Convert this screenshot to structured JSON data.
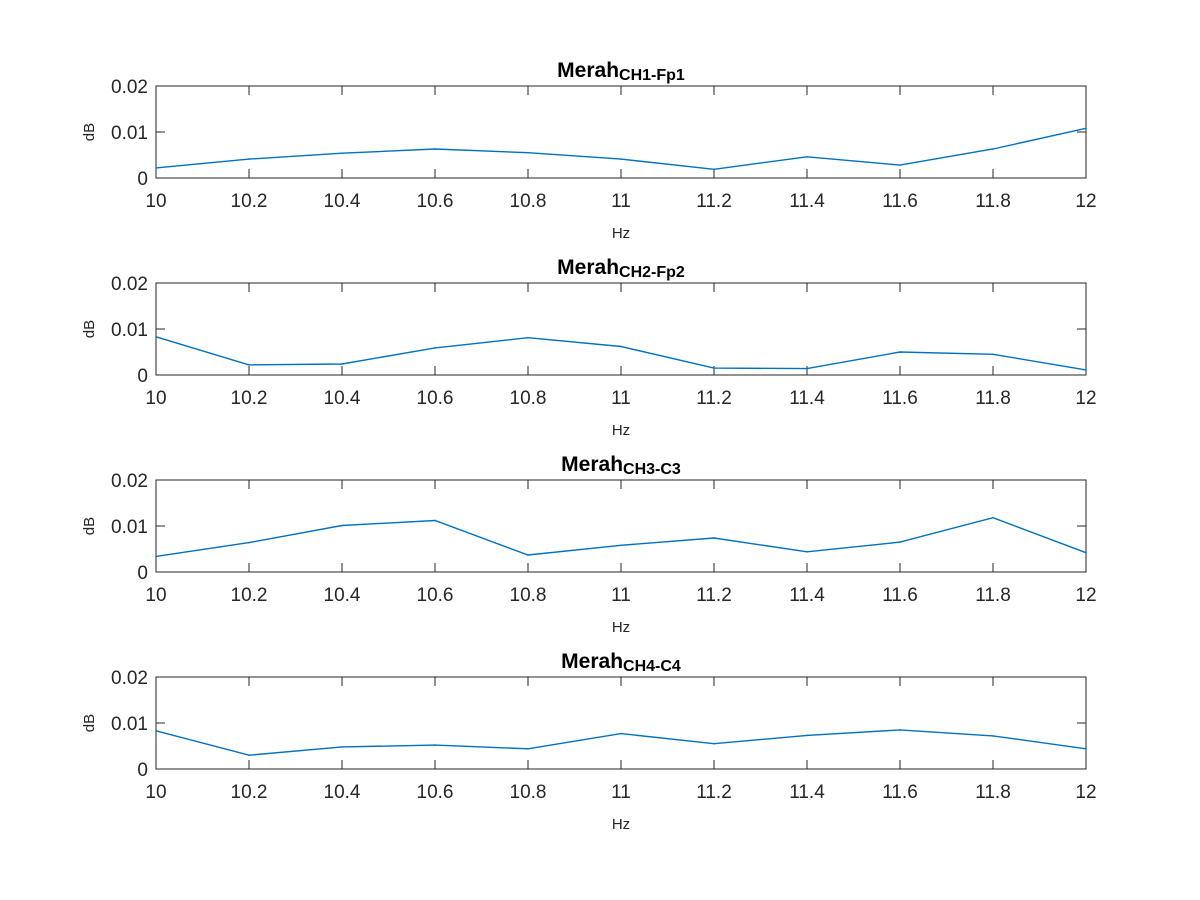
{
  "colors": {
    "series": "#0072BD",
    "axis": "#262626",
    "background": "#ffffff"
  },
  "chart_data": [
    {
      "type": "line",
      "title": "Merah",
      "title_subscript": "CH1-Fp1",
      "xlabel": "Hz",
      "ylabel": "dB",
      "xlim": [
        10,
        12
      ],
      "ylim": [
        0,
        0.02
      ],
      "xticks": [
        "10",
        "10.2",
        "10.4",
        "10.6",
        "10.8",
        "11",
        "11.2",
        "11.4",
        "11.6",
        "11.8",
        "12"
      ],
      "yticks": [
        "0",
        "0.01",
        "0.02"
      ],
      "grid": false,
      "x": [
        10,
        10.2,
        10.4,
        10.6,
        10.8,
        11,
        11.2,
        11.4,
        11.6,
        11.8,
        12
      ],
      "values": [
        0.0022,
        0.0041,
        0.0054,
        0.0063,
        0.0055,
        0.0041,
        0.0019,
        0.0046,
        0.0028,
        0.0063,
        0.0108
      ]
    },
    {
      "type": "line",
      "title": "Merah",
      "title_subscript": "CH2-Fp2",
      "xlabel": "Hz",
      "ylabel": "dB",
      "xlim": [
        10,
        12
      ],
      "ylim": [
        0,
        0.02
      ],
      "xticks": [
        "10",
        "10.2",
        "10.4",
        "10.6",
        "10.8",
        "11",
        "11.2",
        "11.4",
        "11.6",
        "11.8",
        "12"
      ],
      "yticks": [
        "0",
        "0.01",
        "0.02"
      ],
      "grid": false,
      "x": [
        10,
        10.2,
        10.4,
        10.6,
        10.8,
        11,
        11.2,
        11.4,
        11.6,
        11.8,
        12
      ],
      "values": [
        0.0083,
        0.0022,
        0.0024,
        0.0059,
        0.0081,
        0.0062,
        0.0015,
        0.0014,
        0.005,
        0.0045,
        0.0011
      ]
    },
    {
      "type": "line",
      "title": "Merah",
      "title_subscript": "CH3-C3",
      "xlabel": "Hz",
      "ylabel": "dB",
      "xlim": [
        10,
        12
      ],
      "ylim": [
        0,
        0.02
      ],
      "xticks": [
        "10",
        "10.2",
        "10.4",
        "10.6",
        "10.8",
        "11",
        "11.2",
        "11.4",
        "11.6",
        "11.8",
        "12"
      ],
      "yticks": [
        "0",
        "0.01",
        "0.02"
      ],
      "grid": false,
      "x": [
        10,
        10.2,
        10.4,
        10.6,
        10.8,
        11,
        11.2,
        11.4,
        11.6,
        11.8,
        12
      ],
      "values": [
        0.0034,
        0.0064,
        0.0101,
        0.0112,
        0.0037,
        0.0058,
        0.0074,
        0.0044,
        0.0065,
        0.0118,
        0.0042
      ]
    },
    {
      "type": "line",
      "title": "Merah",
      "title_subscript": "CH4-C4",
      "xlabel": "Hz",
      "ylabel": "dB",
      "xlim": [
        10,
        12
      ],
      "ylim": [
        0,
        0.02
      ],
      "xticks": [
        "10",
        "10.2",
        "10.4",
        "10.6",
        "10.8",
        "11",
        "11.2",
        "11.4",
        "11.6",
        "11.8",
        "12"
      ],
      "yticks": [
        "0",
        "0.01",
        "0.02"
      ],
      "grid": false,
      "x": [
        10,
        10.2,
        10.4,
        10.6,
        10.8,
        11,
        11.2,
        11.4,
        11.6,
        11.8,
        12
      ],
      "values": [
        0.0083,
        0.003,
        0.0048,
        0.0052,
        0.0044,
        0.0077,
        0.0055,
        0.0073,
        0.0085,
        0.0072,
        0.0044
      ]
    }
  ]
}
